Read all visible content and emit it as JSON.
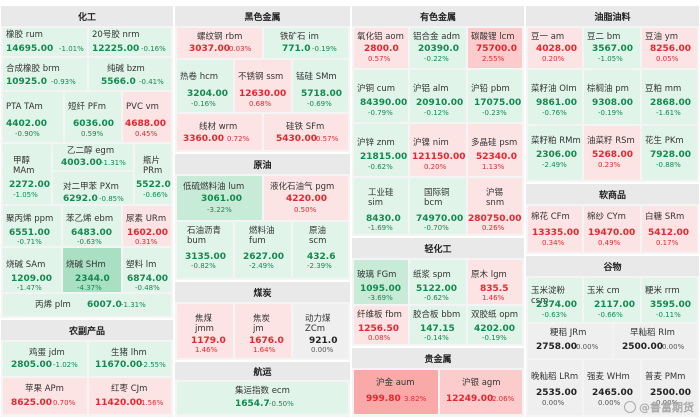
{
  "watermark": "@鲁富期货",
  "sections": {
    "chem": "化工",
    "ferrous": "黑色金属",
    "nonferrous": "有色金属",
    "oil": "油脂油料",
    "crude": "原油",
    "coal": "煤炭",
    "shipping": "航运",
    "agri": "农副产品",
    "light": "轻化工",
    "precious": "贵金属",
    "softs": "软商品",
    "grain": "谷物"
  },
  "cells": {
    "rubber": {
      "name": "橡胶 rum",
      "price": "14695.00",
      "change": "-1.01%"
    },
    "nr": {
      "name": "20号胶 nrm",
      "price": "12225.00",
      "change": "-0.16%"
    },
    "synrubber": {
      "name": "合成橡胶 brm",
      "price": "10925.0",
      "change": "-0.93%"
    },
    "soda": {
      "name": "纯碱 bzm",
      "price": "5566.0",
      "change": "-0.41%"
    },
    "pta": {
      "name": "PTA TAm",
      "price": "4402.00",
      "change": "-0.90%"
    },
    "pf": {
      "name": "短纤 PFm",
      "price": "6036.00",
      "change": "0.59%"
    },
    "pvc": {
      "name": "PVC vm",
      "price": "4688.00",
      "change": "0.45%"
    },
    "methanol": {
      "name": "甲醇\nMAm",
      "price": "2272.00",
      "change": "-1.05%"
    },
    "eg": {
      "name": "乙二醇 egm",
      "price": "4003.00",
      "change": "-1.31%"
    },
    "px": {
      "name": "对二甲苯 PXm",
      "price": "6292.0",
      "change": "-0.85%"
    },
    "sheet": {
      "name": "瓶片\nPRm",
      "price": "5522.00",
      "change": "-0.66%"
    },
    "pp": {
      "name": "聚丙烯 ppm",
      "price": "6551.00",
      "change": "-0.71%"
    },
    "eb": {
      "name": "苯乙烯 ebm",
      "price": "6483.00",
      "change": "-0.63%"
    },
    "urea": {
      "name": "尿素 URm",
      "price": "1602.00",
      "change": "0.31%"
    },
    "caustic": {
      "name": "烧碱 SAm",
      "price": "1209.00",
      "change": "-1.47%"
    },
    "glass": {
      "name": "烧碱 SHm",
      "price": "2344.0",
      "change": "-4.37%"
    },
    "plastic": {
      "name": "塑料 lm",
      "price": "6874.00",
      "change": "-0.48%"
    },
    "propane": {
      "name": "丙烯 plm",
      "price": "6007.0",
      "change": "-1.31%"
    },
    "rebar": {
      "name": "螺纹钢 rbm",
      "price": "3037.00",
      "change": "0.03%"
    },
    "ironore": {
      "name": "铁矿石 im",
      "price": "771.0",
      "change": "-0.19%"
    },
    "hc": {
      "name": "热卷 hcm",
      "price": "3204.00",
      "change": "-0.16%"
    },
    "ss": {
      "name": "不锈钢 ssm",
      "price": "12630.00",
      "change": "0.68%"
    },
    "sm": {
      "name": "锰硅 SMm",
      "price": "5718.00",
      "change": "-0.69%"
    },
    "wire": {
      "name": "线材 wrm",
      "price": "3360.00",
      "change": "0.72%"
    },
    "sf": {
      "name": "硅铁 SFm",
      "price": "5430.00",
      "change": "0.57%"
    },
    "alumina": {
      "name": "氧化铝 aom",
      "price": "2800.0",
      "change": "0.57%"
    },
    "alalloy": {
      "name": "铝合金 adm",
      "price": "20390.0",
      "change": "-0.22%"
    },
    "lc": {
      "name": "碳酸锂 lcm",
      "price": "75700.0",
      "change": "2.55%"
    },
    "cu": {
      "name": "沪铜 cum",
      "price": "84390.00",
      "change": "-0.79%"
    },
    "al": {
      "name": "沪铝 alm",
      "price": "20910.00",
      "change": "-0.12%"
    },
    "pb": {
      "name": "沪铅 pbm",
      "price": "17075.00",
      "change": "-0.23%"
    },
    "zn": {
      "name": "沪锌 znm",
      "price": "21815.00",
      "change": "-0.62%"
    },
    "ni": {
      "name": "沪镍 nim",
      "price": "121150.00",
      "change": "0.20%"
    },
    "ps": {
      "name": "多晶硅 psm",
      "price": "52340.0",
      "change": "1.13%"
    },
    "si": {
      "name": "工业硅\nsim",
      "price": "8430.0",
      "change": "-1.69%"
    },
    "bc": {
      "name": "国际铜\nbcm",
      "price": "74970.00",
      "change": "-0.70%"
    },
    "sn": {
      "name": "沪锡\nsnm",
      "price": "280750.00",
      "change": "0.26%"
    },
    "soymeal2": {
      "name": "豆一 am",
      "price": "4028.00",
      "change": "0.20%"
    },
    "soy2": {
      "name": "豆二 bm",
      "price": "3567.00",
      "change": "-1.05%"
    },
    "soyoil": {
      "name": "豆油 ym",
      "price": "8256.00",
      "change": "0.05%"
    },
    "rapeoil": {
      "name": "菜籽油 OIm",
      "price": "9861.00",
      "change": "-0.76%"
    },
    "palm": {
      "name": "棕榈油 pm",
      "price": "9308.00",
      "change": "-0.19%"
    },
    "soymeal": {
      "name": "豆粕 mm",
      "price": "2868.00",
      "change": "-1.61%"
    },
    "rapemeal": {
      "name": "菜籽粕 RMm",
      "price": "2306.00",
      "change": "-2.49%"
    },
    "rapeseed": {
      "name": "油菜籽 RSm",
      "price": "5268.00",
      "change": "0.23%"
    },
    "peanut": {
      "name": "花生 PKm",
      "price": "7928.00",
      "change": "-0.88%"
    },
    "lu": {
      "name": "低硫燃料油 lum",
      "price": "3061.00",
      "change": "-3.22%"
    },
    "pg": {
      "name": "液化石油气 pgm",
      "price": "4220.00",
      "change": "0.50%"
    },
    "bu": {
      "name": "石油沥青\nbum",
      "price": "3135.00",
      "change": "-0.82%"
    },
    "fu": {
      "name": "燃料油\nfum",
      "price": "2627.00",
      "change": "-2.49%"
    },
    "sc": {
      "name": "原油\nscm",
      "price": "432.6",
      "change": "-2.39%"
    },
    "jm": {
      "name": "焦煤\njmm",
      "price": "1179.0",
      "change": "1.46%"
    },
    "j": {
      "name": "焦炭\njm",
      "price": "1676.0",
      "change": "1.64%"
    },
    "zc": {
      "name": "动力煤\nZCm",
      "price": "921.0",
      "change": "0.00%"
    },
    "ec": {
      "name": "集运指数 ecm",
      "price": "1654.7",
      "change": "-0.50%"
    },
    "fg": {
      "name": "玻璃 FGm",
      "price": "1095.00",
      "change": "-3.69%"
    },
    "sp": {
      "name": "纸浆 spm",
      "price": "5122.00",
      "change": "-0.62%"
    },
    "lg": {
      "name": "原木 lgm",
      "price": "835.5",
      "change": "1.46%"
    },
    "fb": {
      "name": "纤维板 fbm",
      "price": "1256.50",
      "change": "0.08%"
    },
    "bb": {
      "name": "胶合板 bbm",
      "price": "147.15",
      "change": "-0.14%"
    },
    "op": {
      "name": "双胶纸 opm",
      "price": "4202.00",
      "change": "-0.19%"
    },
    "au": {
      "name": "沪金 aum",
      "price": "999.80",
      "change": "3.82%"
    },
    "ag": {
      "name": "沪银 agm",
      "price": "12249.00",
      "change": "2.06%"
    },
    "cf": {
      "name": "棉花 CFm",
      "price": "13335.00",
      "change": "0.34%"
    },
    "cy": {
      "name": "棉纱 CYm",
      "price": "19470.00",
      "change": "0.49%"
    },
    "sr": {
      "name": "白糖 SRm",
      "price": "5412.00",
      "change": "0.17%"
    },
    "cs": {
      "name": "玉米淀粉 csm",
      "price": "2374.00",
      "change": "-0.63%"
    },
    "corn": {
      "name": "玉米 cm",
      "price": "2117.00",
      "change": "-0.66%"
    },
    "rr": {
      "name": "粳米 rrm",
      "price": "3595.00",
      "change": "-0.11%"
    },
    "jr": {
      "name": "粳稻 JRm",
      "price": "2758.00",
      "change": "0.00%"
    },
    "ri": {
      "name": "早籼稻 RIm",
      "price": "2500.00",
      "change": "0.00%"
    },
    "lr": {
      "name": "晚籼稻 LRm",
      "price": "2535.00",
      "change": "0.00%"
    },
    "wh": {
      "name": "强麦 WHm",
      "price": "2465.00",
      "change": "0.00%"
    },
    "pm": {
      "name": "普麦 PMm",
      "price": "2500.00",
      "change": "0.00%"
    },
    "egg": {
      "name": "鸡蛋 jdm",
      "price": "2805.00",
      "change": "-1.02%"
    },
    "hog": {
      "name": "生猪 lhm",
      "price": "11670.00",
      "change": "-2.55%"
    },
    "apple": {
      "name": "苹果 APm",
      "price": "8625.00",
      "change": "0.70%"
    },
    "jujube": {
      "name": "红枣 CJm",
      "price": "11420.00",
      "change": "1.56%"
    }
  }
}
